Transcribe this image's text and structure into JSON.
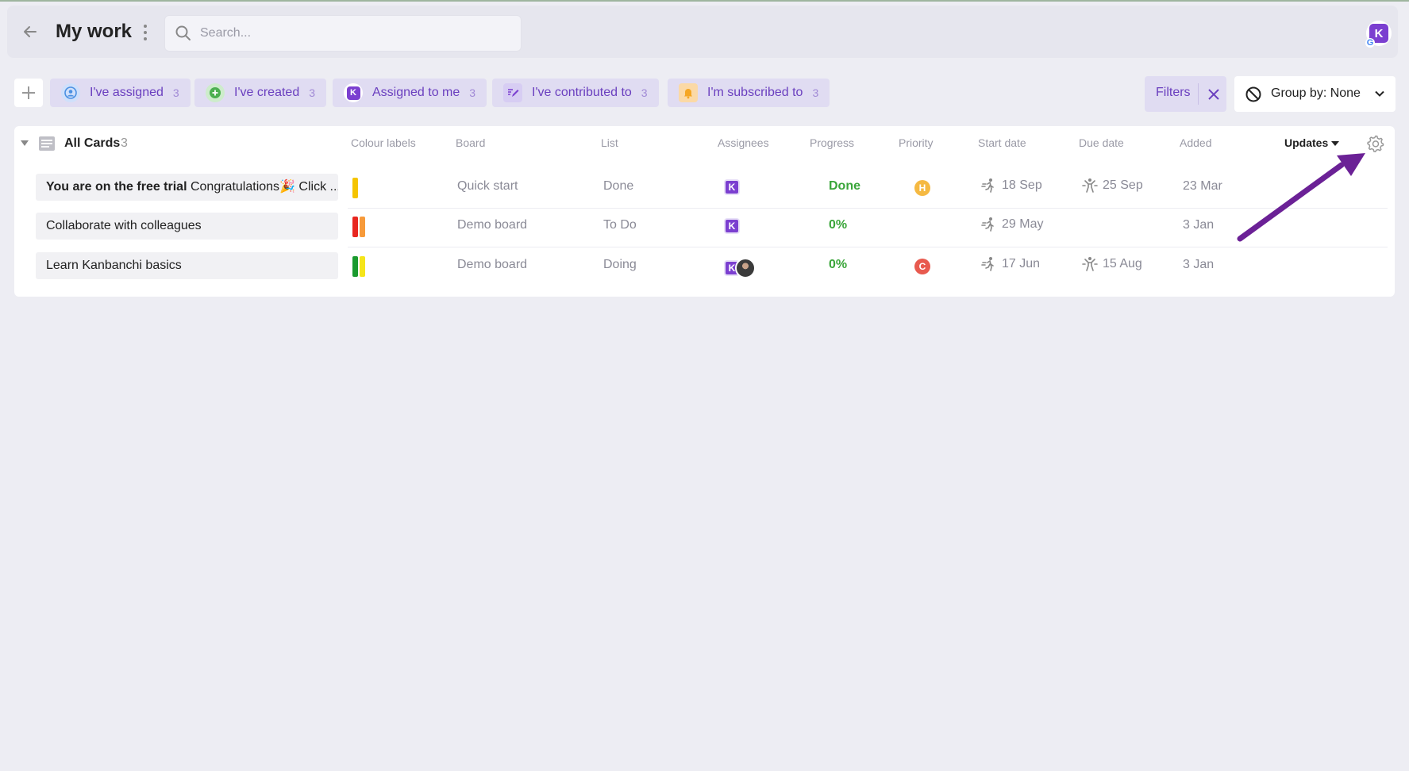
{
  "header": {
    "title": "My work",
    "search_placeholder": "Search...",
    "avatar_letter": "K",
    "avatar_badge": "G"
  },
  "filter_chips": [
    {
      "label": "I've assigned",
      "count": "3",
      "icon": "user-circle-icon",
      "icon_color": "#4a90e2"
    },
    {
      "label": "I've created",
      "count": "3",
      "icon": "plus-circle-icon",
      "icon_color": "#4caf50"
    },
    {
      "label": "Assigned to me",
      "count": "3",
      "icon": "kanbanchi-k-icon",
      "icon_color": "#7b3fd0"
    },
    {
      "label": "I've contributed to",
      "count": "3",
      "icon": "edit-icon",
      "icon_color": "#7b3fd0"
    },
    {
      "label": "I'm subscribed to",
      "count": "3",
      "icon": "bell-icon",
      "icon_color": "#f5a623"
    }
  ],
  "filters_label": "Filters",
  "group_by_label": "Group by: None",
  "group": {
    "title": "All Cards",
    "count": "3"
  },
  "columns": {
    "colour_labels": "Colour labels",
    "board": "Board",
    "list": "List",
    "assignees": "Assignees",
    "progress": "Progress",
    "priority": "Priority",
    "start_date": "Start date",
    "due_date": "Due date",
    "added": "Added",
    "updates": "Updates"
  },
  "rows": [
    {
      "title_bold": "You are on the free trial",
      "title_rest": " Congratulations🎉 Click ...",
      "labels": [
        "#f5c400"
      ],
      "board": "Quick start",
      "list": "Done",
      "assignees": [
        "K"
      ],
      "progress": "Done",
      "priority": "H",
      "priority_color": "#f5b942",
      "start_date": "18 Sep",
      "due_date": "25 Sep",
      "added": "23 Mar"
    },
    {
      "title_bold": "",
      "title_rest": "Collaborate with colleagues",
      "labels": [
        "#e8261f",
        "#f79a3a"
      ],
      "board": "Demo board",
      "list": "To Do",
      "assignees": [
        "K"
      ],
      "progress": "0%",
      "priority": "",
      "priority_color": "",
      "start_date": "29 May",
      "due_date": "",
      "added": "3 Jan"
    },
    {
      "title_bold": "",
      "title_rest": "Learn Kanbanchi basics",
      "labels": [
        "#1a9a2e",
        "#f5e51a"
      ],
      "board": "Demo board",
      "list": "Doing",
      "assignees": [
        "K",
        "photo"
      ],
      "progress": "0%",
      "priority": "C",
      "priority_color": "#e85a4f",
      "start_date": "17 Jun",
      "due_date": "15 Aug",
      "added": "3 Jan"
    }
  ],
  "colors": {
    "accent": "#6a3fbf",
    "progress_green": "#3aa53a",
    "annotation_arrow": "#6b2196"
  }
}
